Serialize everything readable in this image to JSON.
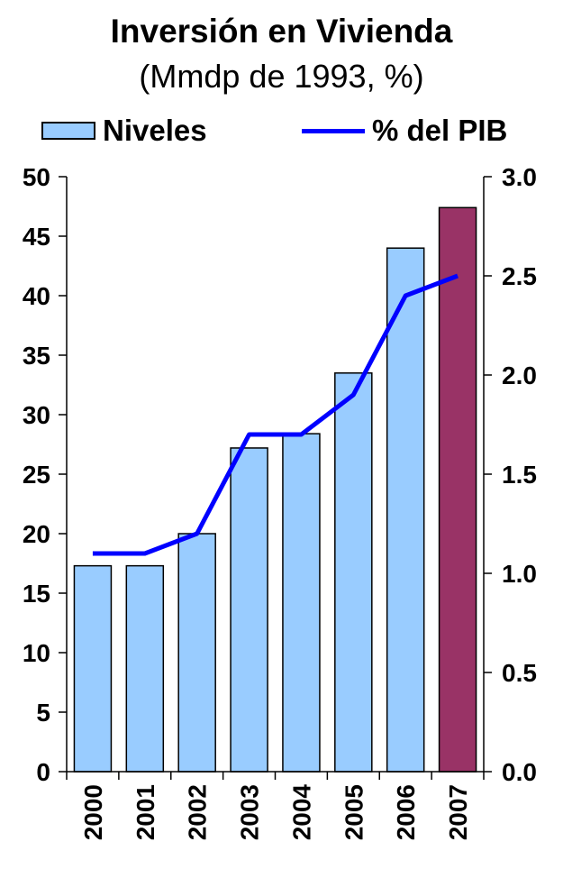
{
  "chart_data": {
    "type": "bar",
    "title": "Inversión en Vivienda",
    "subtitle": "(Mmdp de 1993, %)",
    "categories": [
      "2000",
      "2001",
      "2002",
      "2003",
      "2004",
      "2005",
      "2006",
      "2007"
    ],
    "series": [
      {
        "name": "Niveles",
        "type": "bar",
        "axis": "left",
        "values": [
          17.3,
          17.3,
          20.0,
          27.2,
          28.4,
          33.5,
          44.0,
          47.4
        ],
        "color": "#99ccff",
        "highlight_index": 7,
        "highlight_color": "#993366"
      },
      {
        "name": "% del PIB",
        "type": "line",
        "axis": "right",
        "values": [
          1.1,
          1.1,
          1.2,
          1.7,
          1.7,
          1.9,
          2.4,
          2.5
        ],
        "color": "#0000ff"
      }
    ],
    "y_left": {
      "min": 0,
      "max": 50,
      "ticks": [
        "0",
        "5",
        "10",
        "15",
        "20",
        "25",
        "30",
        "35",
        "40",
        "45",
        "50"
      ]
    },
    "y_right": {
      "min": 0,
      "max": 3,
      "ticks": [
        "0.0",
        "0.5",
        "1.0",
        "1.5",
        "2.0",
        "2.5",
        "3.0"
      ]
    },
    "legend": {
      "position": "top"
    },
    "grid": false
  }
}
